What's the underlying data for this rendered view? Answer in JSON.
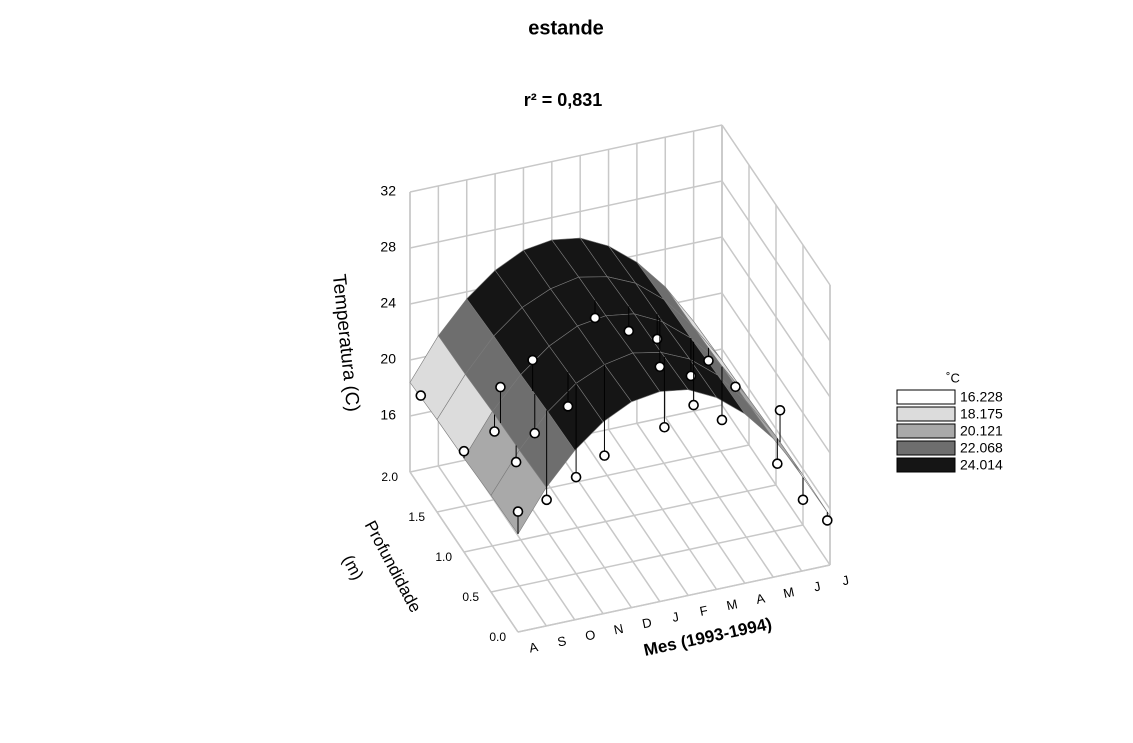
{
  "chart_data": {
    "type": "surface3d",
    "title": "estande",
    "subtitle": "r² = 0,831",
    "z_label": "Temperatura (C)",
    "depth_label": [
      "Profundidade",
      "(m)"
    ],
    "x_label": "Mes (1993-1994)",
    "categories": [
      "A",
      "S",
      "O",
      "N",
      "D",
      "J",
      "F",
      "M",
      "A",
      "M",
      "J",
      "J"
    ],
    "zlim": [
      12,
      32
    ],
    "zticks": [
      16,
      20,
      24,
      28,
      32
    ],
    "depthlim": [
      0,
      2
    ],
    "depthticks": [
      {
        "value": 0,
        "label": "0.0"
      },
      {
        "value": 0.5,
        "label": "0.5"
      },
      {
        "value": 1,
        "label": "1.0"
      },
      {
        "value": 1.5,
        "label": "1.5"
      },
      {
        "value": 2,
        "label": "2.0"
      }
    ],
    "surface": {
      "depths": [
        0,
        0.5,
        1,
        1.5,
        2
      ],
      "z": [
        [
          19.0,
          21.9,
          24.1,
          25.7,
          26.7,
          27.0,
          26.7,
          25.7,
          24.1,
          21.9,
          19.0,
          15.5
        ],
        [
          18.9,
          21.7,
          24.0,
          25.6,
          26.5,
          26.9,
          26.5,
          25.6,
          24.0,
          21.7,
          18.9,
          15.4
        ],
        [
          18.7,
          21.6,
          23.8,
          25.4,
          26.4,
          26.7,
          26.4,
          25.4,
          23.8,
          21.6,
          18.7,
          15.2
        ],
        [
          18.6,
          21.4,
          23.7,
          25.3,
          26.2,
          26.6,
          26.2,
          25.3,
          23.7,
          21.4,
          18.6,
          15.1
        ],
        [
          18.4,
          21.3,
          23.5,
          25.1,
          26.1,
          26.4,
          26.1,
          25.1,
          23.5,
          21.3,
          18.4,
          14.9
        ]
      ]
    },
    "points": {
      "month": [
        0,
        0,
        0,
        1,
        1,
        1,
        2,
        2,
        2,
        3,
        3,
        4,
        6,
        5,
        6,
        7,
        7,
        8,
        9,
        8,
        9,
        9,
        10,
        10,
        11,
        11
      ],
      "depth": [
        1.8,
        1.0,
        0,
        0.85,
        0.96,
        0.56,
        0.78,
        0.74,
        0.52,
        0.65,
        0.5,
        0.5,
        0.44,
        1.2,
        1.1,
        1.1,
        1.05,
        1.0,
        1.2,
        0.95,
        0.7,
        0.95,
        0.4,
        0.45,
        0.5,
        0.05
      ],
      "values": [
        18.6,
        19.2,
        20.6,
        24.2,
        20.4,
        20.5,
        26.1,
        21.1,
        17.6,
        23.1,
        18.9,
        20.0,
        21.5,
        25.4,
        24.6,
        23.6,
        21.9,
        21.1,
        20.6,
        19.3,
        21.6,
        17.8,
        21.2,
        17.1,
        13.8,
        14.9
      ]
    },
    "legend": {
      "title": "˚C",
      "levels": [
        {
          "value": 16.228,
          "color": "#ffffff"
        },
        {
          "value": 18.175,
          "color": "#dcdcdc"
        },
        {
          "value": 20.121,
          "color": "#a9a9a9"
        },
        {
          "value": 22.068,
          "color": "#6e6e6e"
        },
        {
          "value": 24.014,
          "color": "#151515"
        }
      ]
    }
  }
}
